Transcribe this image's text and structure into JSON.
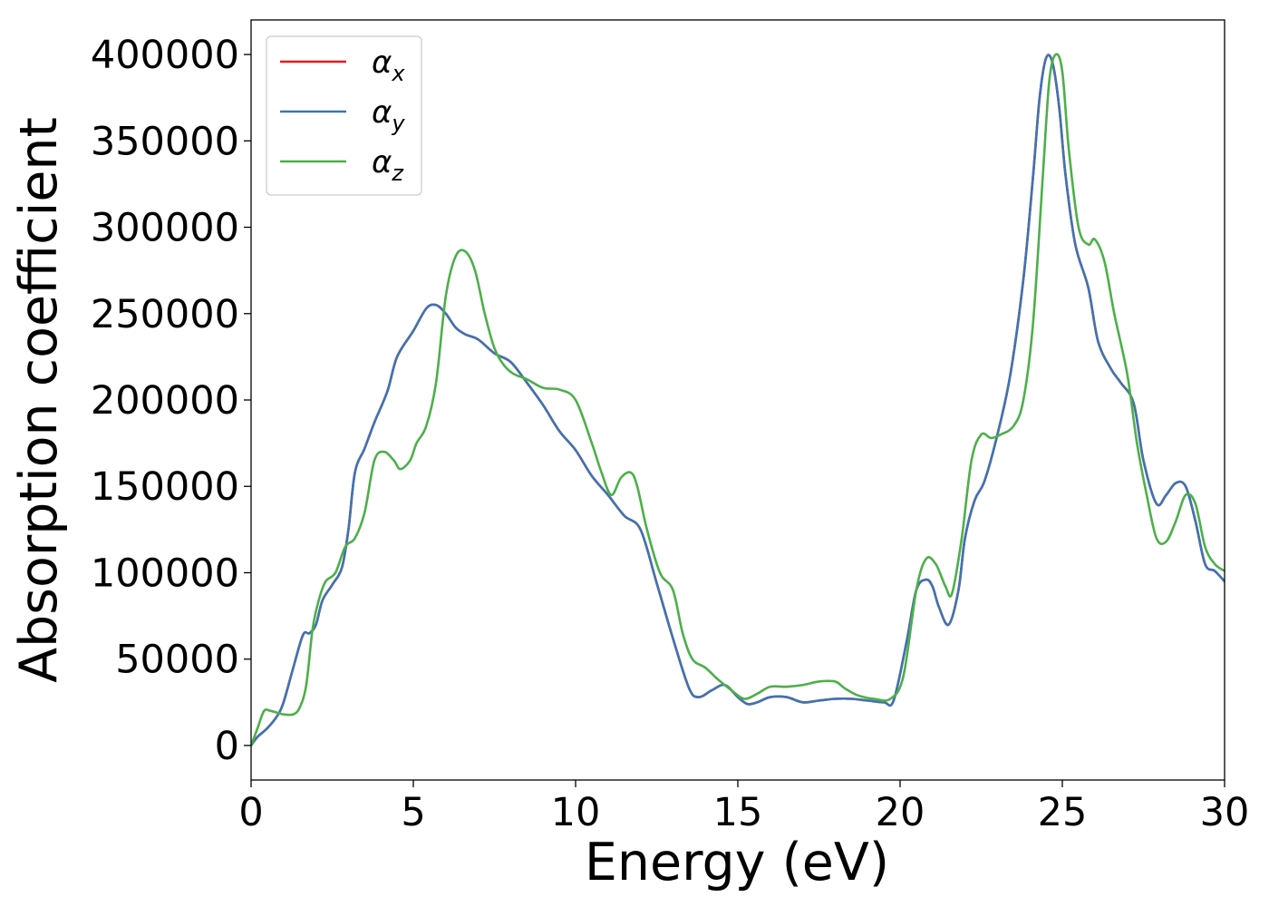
{
  "chart_data": {
    "type": "line",
    "title": "",
    "xlabel": "Energy (eV)",
    "ylabel": "Absorption coefficient",
    "xlim": [
      0,
      30
    ],
    "ylim": [
      -20000,
      420000
    ],
    "xticks": [
      0,
      5,
      10,
      15,
      20,
      25,
      30
    ],
    "yticks": [
      0,
      50000,
      100000,
      150000,
      200000,
      250000,
      300000,
      350000,
      400000
    ],
    "grid": false,
    "legend_position": "top-left",
    "series": [
      {
        "name": "α_x",
        "legend_base": "α",
        "legend_sub": "x",
        "color": "#e41a1c",
        "x": [
          0,
          0.2,
          0.5,
          0.8,
          1.0,
          1.3,
          1.6,
          1.8,
          2.0,
          2.2,
          2.5,
          2.8,
          3.0,
          3.2,
          3.5,
          3.8,
          4.2,
          4.5,
          5.0,
          5.4,
          5.7,
          6.0,
          6.3,
          6.6,
          7.0,
          7.5,
          8.0,
          8.5,
          9.0,
          9.5,
          10.0,
          10.5,
          11.0,
          11.5,
          12.0,
          12.5,
          13.0,
          13.5,
          13.8,
          14.2,
          14.6,
          15.0,
          15.3,
          15.6,
          16.0,
          16.5,
          17.0,
          17.5,
          18.0,
          18.5,
          19.0,
          19.5,
          19.8,
          20.2,
          20.5,
          20.8,
          21.0,
          21.2,
          21.5,
          21.8,
          22.0,
          22.3,
          22.6,
          23.0,
          23.4,
          23.8,
          24.1,
          24.3,
          24.5,
          24.7,
          24.9,
          25.1,
          25.4,
          25.8,
          26.1,
          26.5,
          26.8,
          27.2,
          27.5,
          27.9,
          28.2,
          28.5,
          28.8,
          29.1,
          29.4,
          29.7,
          30.0
        ],
        "values": [
          0,
          5000,
          10000,
          17000,
          25000,
          45000,
          64000,
          65000,
          70000,
          84000,
          93000,
          103000,
          125000,
          158000,
          172000,
          187000,
          205000,
          225000,
          240000,
          253000,
          255000,
          250000,
          242000,
          238000,
          235000,
          227000,
          222000,
          210000,
          197000,
          182000,
          171000,
          156000,
          145000,
          133000,
          125000,
          94000,
          62000,
          33000,
          28000,
          32000,
          35000,
          28000,
          24000,
          25000,
          28000,
          28000,
          25000,
          26000,
          27000,
          27000,
          26000,
          25000,
          26000,
          60000,
          90000,
          96000,
          92000,
          80000,
          70000,
          90000,
          120000,
          142000,
          153000,
          180000,
          215000,
          270000,
          330000,
          375000,
          398000,
          395000,
          370000,
          330000,
          290000,
          265000,
          234000,
          218000,
          210000,
          198000,
          165000,
          140000,
          145000,
          152000,
          150000,
          130000,
          105000,
          101000,
          95000
        ]
      },
      {
        "name": "α_y",
        "legend_base": "α",
        "legend_sub": "y",
        "color": "#3e74b2",
        "x": [
          0,
          0.2,
          0.5,
          0.8,
          1.0,
          1.3,
          1.6,
          1.8,
          2.0,
          2.2,
          2.5,
          2.8,
          3.0,
          3.2,
          3.5,
          3.8,
          4.2,
          4.5,
          5.0,
          5.4,
          5.7,
          6.0,
          6.3,
          6.6,
          7.0,
          7.5,
          8.0,
          8.5,
          9.0,
          9.5,
          10.0,
          10.5,
          11.0,
          11.5,
          12.0,
          12.5,
          13.0,
          13.5,
          13.8,
          14.2,
          14.6,
          15.0,
          15.3,
          15.6,
          16.0,
          16.5,
          17.0,
          17.5,
          18.0,
          18.5,
          19.0,
          19.5,
          19.8,
          20.2,
          20.5,
          20.8,
          21.0,
          21.2,
          21.5,
          21.8,
          22.0,
          22.3,
          22.6,
          23.0,
          23.4,
          23.8,
          24.1,
          24.3,
          24.5,
          24.7,
          24.9,
          25.1,
          25.4,
          25.8,
          26.1,
          26.5,
          26.8,
          27.2,
          27.5,
          27.9,
          28.2,
          28.5,
          28.8,
          29.1,
          29.4,
          29.7,
          30.0
        ],
        "values": [
          0,
          5000,
          10000,
          17000,
          25000,
          45000,
          64000,
          65000,
          70000,
          84000,
          93000,
          103000,
          125000,
          158000,
          172000,
          187000,
          205000,
          225000,
          240000,
          253000,
          255000,
          250000,
          242000,
          238000,
          235000,
          227000,
          222000,
          210000,
          197000,
          182000,
          171000,
          156000,
          145000,
          133000,
          125000,
          94000,
          62000,
          33000,
          28000,
          32000,
          35000,
          28000,
          24000,
          25000,
          28000,
          28000,
          25000,
          26000,
          27000,
          27000,
          26000,
          25000,
          26000,
          60000,
          90000,
          96000,
          92000,
          80000,
          70000,
          90000,
          120000,
          142000,
          153000,
          180000,
          215000,
          270000,
          330000,
          375000,
          398000,
          395000,
          370000,
          330000,
          290000,
          265000,
          234000,
          218000,
          210000,
          198000,
          165000,
          140000,
          145000,
          152000,
          150000,
          130000,
          105000,
          101000,
          95000
        ]
      },
      {
        "name": "α_z",
        "legend_base": "α",
        "legend_sub": "z",
        "color": "#4daf4a",
        "x": [
          0,
          0.2,
          0.4,
          0.6,
          0.8,
          1.0,
          1.3,
          1.5,
          1.7,
          1.9,
          2.1,
          2.3,
          2.6,
          2.9,
          3.2,
          3.5,
          3.8,
          4.1,
          4.4,
          4.6,
          4.9,
          5.1,
          5.4,
          5.7,
          6.0,
          6.3,
          6.6,
          6.9,
          7.2,
          7.5,
          7.8,
          8.1,
          8.5,
          9.0,
          9.5,
          10.0,
          10.5,
          10.8,
          11.1,
          11.4,
          11.7,
          11.9,
          12.2,
          12.6,
          13.0,
          13.3,
          13.6,
          14.0,
          14.4,
          14.8,
          15.2,
          15.6,
          16.0,
          16.5,
          17.0,
          17.5,
          18.0,
          18.3,
          18.7,
          19.2,
          19.7,
          20.1,
          20.5,
          20.8,
          21.1,
          21.4,
          21.6,
          21.9,
          22.2,
          22.5,
          22.8,
          23.1,
          23.5,
          23.8,
          24.1,
          24.4,
          24.6,
          24.8,
          25.0,
          25.2,
          25.5,
          25.8,
          26.0,
          26.3,
          26.6,
          27.0,
          27.3,
          27.6,
          27.9,
          28.2,
          28.5,
          28.8,
          29.1,
          29.4,
          29.7,
          30.0
        ],
        "values": [
          0,
          10000,
          20000,
          20000,
          19000,
          18000,
          18000,
          22000,
          35000,
          68000,
          85000,
          95000,
          100000,
          115000,
          120000,
          135000,
          165000,
          170000,
          165000,
          160000,
          165000,
          175000,
          185000,
          210000,
          260000,
          283000,
          286000,
          275000,
          250000,
          230000,
          220000,
          215000,
          212000,
          207000,
          206000,
          200000,
          175000,
          158000,
          145000,
          155000,
          158000,
          150000,
          125000,
          100000,
          90000,
          65000,
          50000,
          45000,
          38000,
          32000,
          27000,
          30000,
          34000,
          34000,
          35000,
          37000,
          37000,
          33000,
          29000,
          27000,
          27000,
          40000,
          90000,
          108000,
          105000,
          92000,
          88000,
          120000,
          165000,
          180000,
          178000,
          180000,
          185000,
          200000,
          245000,
          330000,
          385000,
          400000,
          390000,
          345000,
          300000,
          290000,
          293000,
          280000,
          250000,
          215000,
          175000,
          145000,
          120000,
          118000,
          130000,
          145000,
          140000,
          115000,
          105000,
          101000
        ]
      }
    ]
  }
}
